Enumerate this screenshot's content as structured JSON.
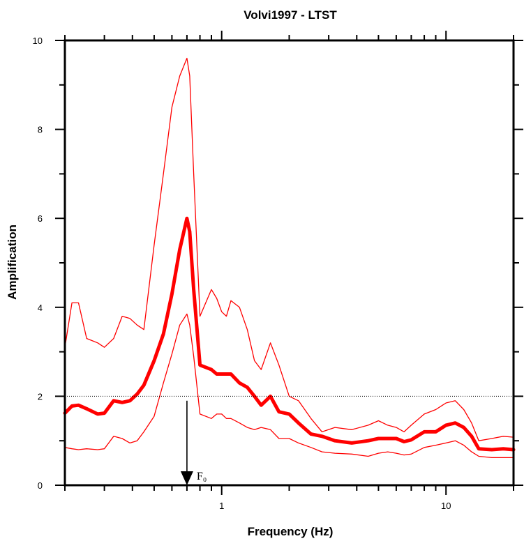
{
  "chart_data": {
    "type": "line",
    "title": "Volvi1997 - LTST",
    "xlabel": "Frequency (Hz)",
    "ylabel": "Amplification",
    "xscale": "log",
    "xlim": [
      0.2,
      20
    ],
    "ylim": [
      0,
      10
    ],
    "xticklabels": [
      {
        "value": 1,
        "label": "1"
      },
      {
        "value": 10,
        "label": "10"
      }
    ],
    "yticklabels": [
      {
        "value": 0,
        "label": "0"
      },
      {
        "value": 2,
        "label": "2"
      },
      {
        "value": 4,
        "label": "4"
      },
      {
        "value": 6,
        "label": "6"
      },
      {
        "value": 8,
        "label": "8"
      },
      {
        "value": 10,
        "label": "10"
      }
    ],
    "grid": false,
    "reference_line": {
      "y": 2,
      "style": "dotted"
    },
    "annotation": {
      "label": "F₀",
      "x": 0.7,
      "arrow_from_y": 1.9,
      "arrow_to_y": 0
    },
    "colors": {
      "series": "#ff0000",
      "axes": "#000000"
    },
    "series": [
      {
        "style": "thick",
        "x": [
          0.2,
          0.215,
          0.23,
          0.25,
          0.28,
          0.3,
          0.33,
          0.36,
          0.39,
          0.42,
          0.45,
          0.5,
          0.55,
          0.6,
          0.65,
          0.7,
          0.72,
          0.75,
          0.8,
          0.9,
          0.95,
          1.0,
          1.05,
          1.1,
          1.2,
          1.3,
          1.4,
          1.5,
          1.65,
          1.8,
          2.0,
          2.2,
          2.5,
          2.8,
          3.2,
          3.8,
          4.5,
          5.0,
          5.5,
          6.0,
          6.5,
          7.0,
          8.0,
          9.0,
          10.0,
          11.0,
          12.0,
          13.0,
          14.0,
          16.0,
          18.0,
          20.0
        ],
        "y": [
          1.62,
          1.78,
          1.8,
          1.72,
          1.6,
          1.62,
          1.9,
          1.86,
          1.9,
          2.05,
          2.25,
          2.8,
          3.4,
          4.3,
          5.3,
          6.0,
          5.7,
          4.4,
          2.7,
          2.6,
          2.5,
          2.5,
          2.5,
          2.5,
          2.3,
          2.2,
          2.0,
          1.8,
          2.0,
          1.65,
          1.6,
          1.4,
          1.15,
          1.1,
          1.0,
          0.95,
          1.0,
          1.05,
          1.05,
          1.05,
          0.98,
          1.02,
          1.2,
          1.2,
          1.35,
          1.4,
          1.3,
          1.1,
          0.82,
          0.8,
          0.82,
          0.8
        ]
      },
      {
        "style": "thin",
        "x": [
          0.2,
          0.215,
          0.23,
          0.25,
          0.28,
          0.3,
          0.33,
          0.36,
          0.39,
          0.42,
          0.45,
          0.5,
          0.55,
          0.6,
          0.65,
          0.7,
          0.72,
          0.75,
          0.8,
          0.9,
          0.95,
          1.0,
          1.05,
          1.1,
          1.2,
          1.3,
          1.4,
          1.5,
          1.65,
          1.8,
          2.0,
          2.2,
          2.5,
          2.8,
          3.2,
          3.8,
          4.5,
          5.0,
          5.5,
          6.0,
          6.5,
          7.0,
          8.0,
          9.0,
          10.0,
          11.0,
          12.0,
          13.0,
          14.0,
          16.0,
          18.0,
          20.0
        ],
        "y": [
          3.1,
          4.1,
          4.1,
          3.3,
          3.2,
          3.1,
          3.3,
          3.8,
          3.75,
          3.6,
          3.5,
          5.4,
          7.0,
          8.5,
          9.2,
          9.6,
          9.2,
          7.0,
          3.8,
          4.4,
          4.2,
          3.9,
          3.8,
          4.15,
          4.0,
          3.5,
          2.8,
          2.6,
          3.2,
          2.7,
          2.0,
          1.9,
          1.5,
          1.2,
          1.3,
          1.25,
          1.35,
          1.45,
          1.35,
          1.3,
          1.2,
          1.35,
          1.6,
          1.7,
          1.85,
          1.9,
          1.7,
          1.4,
          1.0,
          1.05,
          1.1,
          1.08
        ]
      },
      {
        "style": "thin",
        "x": [
          0.2,
          0.215,
          0.23,
          0.25,
          0.28,
          0.3,
          0.33,
          0.36,
          0.39,
          0.42,
          0.45,
          0.5,
          0.55,
          0.6,
          0.65,
          0.7,
          0.72,
          0.75,
          0.8,
          0.9,
          0.95,
          1.0,
          1.05,
          1.1,
          1.2,
          1.3,
          1.4,
          1.5,
          1.65,
          1.8,
          2.0,
          2.2,
          2.5,
          2.8,
          3.2,
          3.8,
          4.5,
          5.0,
          5.5,
          6.0,
          6.5,
          7.0,
          8.0,
          9.0,
          10.0,
          11.0,
          12.0,
          13.0,
          14.0,
          16.0,
          18.0,
          20.0
        ],
        "y": [
          0.85,
          0.82,
          0.8,
          0.82,
          0.8,
          0.82,
          1.1,
          1.05,
          0.95,
          1.0,
          1.2,
          1.55,
          2.3,
          2.95,
          3.6,
          3.85,
          3.6,
          2.9,
          1.6,
          1.5,
          1.6,
          1.6,
          1.5,
          1.5,
          1.4,
          1.3,
          1.25,
          1.3,
          1.25,
          1.05,
          1.05,
          0.95,
          0.85,
          0.75,
          0.72,
          0.7,
          0.65,
          0.72,
          0.75,
          0.72,
          0.68,
          0.7,
          0.85,
          0.9,
          0.95,
          1.0,
          0.9,
          0.75,
          0.65,
          0.62,
          0.62,
          0.62
        ]
      }
    ]
  }
}
